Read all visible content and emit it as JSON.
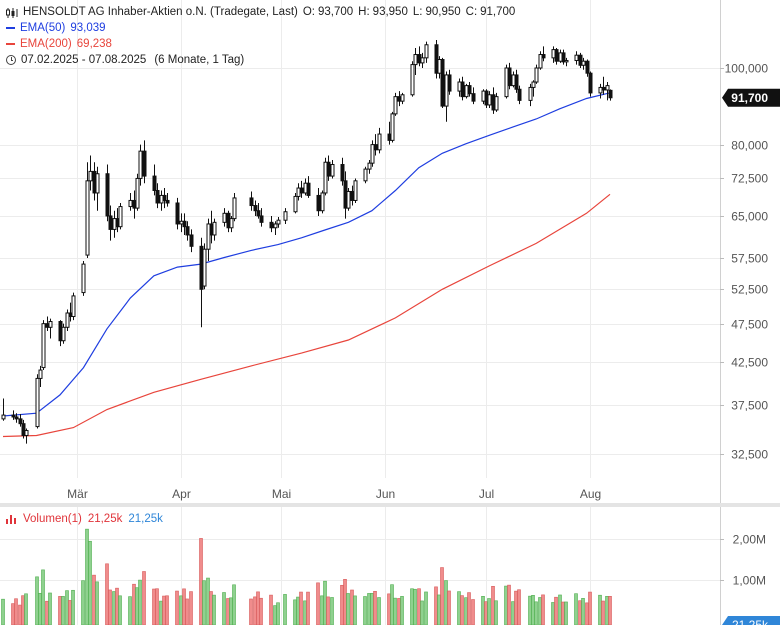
{
  "header": {
    "title": "HENSOLDT AG Inhaber-Aktien o.N. (Tradegate, Last)",
    "ohlc": {
      "open_label": "O:",
      "open": "93,700",
      "high_label": "H:",
      "high": "93,950",
      "low_label": "L:",
      "low": "90,950",
      "close_label": "C:",
      "close": "91,700"
    },
    "ema50": {
      "label": "EMA(50)",
      "value": "93,039",
      "color": "#1f3ee0"
    },
    "ema200": {
      "label": "EMA(200)",
      "value": "69,238",
      "color": "#e8453c"
    },
    "range": "07.02.2025 - 07.08.2025",
    "range_detail": "(6 Monate, 1 Tag)"
  },
  "price_badge": "91,700",
  "volume_legend": {
    "label": "Volumen(1)",
    "value1": "21,25k",
    "value2": "21,25k",
    "badge": "21,25k"
  },
  "chart_data": {
    "type": "candlestick",
    "y_scale": "log",
    "ylim": [
      30,
      115
    ],
    "y_ticks": [
      "100,000",
      "80,000",
      "72,500",
      "65,000",
      "57,500",
      "52,500",
      "47,500",
      "42,500",
      "37,500",
      "32,500"
    ],
    "y_tick_values": [
      100,
      80,
      72.5,
      65,
      57.5,
      52.5,
      47.5,
      42.5,
      37.5,
      32.5
    ],
    "x_range": [
      "2025-02-07",
      "2025-08-07"
    ],
    "x_ticks": [
      {
        "label": "Mär",
        "date": "2025-03-01"
      },
      {
        "label": "Apr",
        "date": "2025-04-01"
      },
      {
        "label": "Mai",
        "date": "2025-05-01"
      },
      {
        "label": "Jun",
        "date": "2025-06-01"
      },
      {
        "label": "Jul",
        "date": "2025-07-01"
      },
      {
        "label": "Aug",
        "date": "2025-08-01"
      }
    ],
    "candles": [
      {
        "d": "2025-02-07",
        "o": 36.0,
        "h": 38.2,
        "l": 35.8,
        "c": 36.4
      },
      {
        "d": "2025-02-10",
        "o": 36.4,
        "h": 36.9,
        "l": 35.9,
        "c": 36.2
      },
      {
        "d": "2025-02-11",
        "o": 36.2,
        "h": 36.6,
        "l": 35.6,
        "c": 36.0
      },
      {
        "d": "2025-02-12",
        "o": 36.0,
        "h": 36.5,
        "l": 35.2,
        "c": 35.5
      },
      {
        "d": "2025-02-13",
        "o": 35.5,
        "h": 35.9,
        "l": 34.0,
        "c": 34.3
      },
      {
        "d": "2025-02-14",
        "o": 34.3,
        "h": 35.0,
        "l": 33.5,
        "c": 34.8
      },
      {
        "d": "2025-02-17",
        "o": 35.2,
        "h": 41.0,
        "l": 35.0,
        "c": 40.5
      },
      {
        "d": "2025-02-18",
        "o": 40.5,
        "h": 42.0,
        "l": 39.5,
        "c": 41.5
      },
      {
        "d": "2025-02-19",
        "o": 41.8,
        "h": 48.0,
        "l": 41.5,
        "c": 47.5
      },
      {
        "d": "2025-02-20",
        "o": 47.5,
        "h": 48.5,
        "l": 46.5,
        "c": 47.0
      },
      {
        "d": "2025-02-21",
        "o": 47.0,
        "h": 48.2,
        "l": 45.5,
        "c": 47.8
      },
      {
        "d": "2025-02-24",
        "o": 47.8,
        "h": 48.0,
        "l": 44.5,
        "c": 45.2
      },
      {
        "d": "2025-02-25",
        "o": 45.2,
        "h": 47.5,
        "l": 44.8,
        "c": 47.0
      },
      {
        "d": "2025-02-26",
        "o": 47.0,
        "h": 49.5,
        "l": 46.5,
        "c": 49.0
      },
      {
        "d": "2025-02-27",
        "o": 49.0,
        "h": 50.5,
        "l": 47.8,
        "c": 48.5
      },
      {
        "d": "2025-02-28",
        "o": 48.5,
        "h": 52.0,
        "l": 48.0,
        "c": 51.5
      },
      {
        "d": "2025-03-03",
        "o": 52.0,
        "h": 57.0,
        "l": 51.5,
        "c": 56.5
      },
      {
        "d": "2025-03-04",
        "o": 58.0,
        "h": 76.0,
        "l": 57.5,
        "c": 72.0
      },
      {
        "d": "2025-03-05",
        "o": 72.0,
        "h": 77.5,
        "l": 70.0,
        "c": 74.0
      },
      {
        "d": "2025-03-06",
        "o": 74.0,
        "h": 76.0,
        "l": 68.0,
        "c": 69.5
      },
      {
        "d": "2025-03-07",
        "o": 69.5,
        "h": 75.0,
        "l": 66.0,
        "c": 73.5
      },
      {
        "d": "2025-03-10",
        "o": 73.5,
        "h": 75.5,
        "l": 64.0,
        "c": 65.0
      },
      {
        "d": "2025-03-11",
        "o": 65.0,
        "h": 67.0,
        "l": 60.5,
        "c": 62.5
      },
      {
        "d": "2025-03-12",
        "o": 62.5,
        "h": 66.0,
        "l": 61.0,
        "c": 64.5
      },
      {
        "d": "2025-03-13",
        "o": 64.5,
        "h": 66.5,
        "l": 62.0,
        "c": 63.0
      },
      {
        "d": "2025-03-14",
        "o": 63.0,
        "h": 67.5,
        "l": 62.5,
        "c": 66.8
      },
      {
        "d": "2025-03-17",
        "o": 66.8,
        "h": 69.5,
        "l": 66.0,
        "c": 68.0
      },
      {
        "d": "2025-03-18",
        "o": 68.0,
        "h": 70.0,
        "l": 64.5,
        "c": 66.5
      },
      {
        "d": "2025-03-19",
        "o": 66.5,
        "h": 73.5,
        "l": 66.0,
        "c": 72.5
      },
      {
        "d": "2025-03-20",
        "o": 72.5,
        "h": 80.0,
        "l": 71.0,
        "c": 78.5
      },
      {
        "d": "2025-03-21",
        "o": 78.5,
        "h": 81.0,
        "l": 71.5,
        "c": 73.0
      },
      {
        "d": "2025-03-24",
        "o": 73.0,
        "h": 75.5,
        "l": 69.0,
        "c": 70.0
      },
      {
        "d": "2025-03-25",
        "o": 70.0,
        "h": 71.5,
        "l": 66.5,
        "c": 67.5
      },
      {
        "d": "2025-03-26",
        "o": 67.5,
        "h": 70.0,
        "l": 66.0,
        "c": 69.0
      },
      {
        "d": "2025-03-27",
        "o": 69.0,
        "h": 70.5,
        "l": 66.5,
        "c": 68.0
      },
      {
        "d": "2025-03-28",
        "o": 68.0,
        "h": 69.5,
        "l": 66.8,
        "c": 67.5
      },
      {
        "d": "2025-03-31",
        "o": 67.5,
        "h": 68.5,
        "l": 62.5,
        "c": 63.5
      },
      {
        "d": "2025-04-01",
        "o": 63.5,
        "h": 65.5,
        "l": 62.0,
        "c": 64.0
      },
      {
        "d": "2025-04-02",
        "o": 64.0,
        "h": 65.5,
        "l": 61.5,
        "c": 63.0
      },
      {
        "d": "2025-04-03",
        "o": 63.0,
        "h": 64.0,
        "l": 60.5,
        "c": 61.5
      },
      {
        "d": "2025-04-04",
        "o": 61.5,
        "h": 62.5,
        "l": 58.5,
        "c": 59.5
      },
      {
        "d": "2025-04-07",
        "o": 59.5,
        "h": 61.0,
        "l": 47.0,
        "c": 52.5
      },
      {
        "d": "2025-04-08",
        "o": 53.0,
        "h": 60.0,
        "l": 52.5,
        "c": 59.0
      },
      {
        "d": "2025-04-09",
        "o": 59.0,
        "h": 64.5,
        "l": 57.0,
        "c": 63.5
      },
      {
        "d": "2025-04-10",
        "o": 63.5,
        "h": 66.0,
        "l": 60.0,
        "c": 61.5
      },
      {
        "d": "2025-04-11",
        "o": 61.5,
        "h": 64.5,
        "l": 60.5,
        "c": 63.8
      },
      {
        "d": "2025-04-14",
        "o": 63.8,
        "h": 66.5,
        "l": 63.0,
        "c": 65.5
      },
      {
        "d": "2025-04-15",
        "o": 65.5,
        "h": 66.0,
        "l": 62.0,
        "c": 62.8
      },
      {
        "d": "2025-04-16",
        "o": 62.8,
        "h": 65.0,
        "l": 62.0,
        "c": 64.5
      },
      {
        "d": "2025-04-17",
        "o": 64.5,
        "h": 69.5,
        "l": 64.0,
        "c": 68.5
      },
      {
        "d": "2025-04-22",
        "o": 68.5,
        "h": 69.8,
        "l": 66.0,
        "c": 67.0
      },
      {
        "d": "2025-04-23",
        "o": 67.0,
        "h": 68.0,
        "l": 65.0,
        "c": 66.0
      },
      {
        "d": "2025-04-24",
        "o": 66.0,
        "h": 67.5,
        "l": 64.5,
        "c": 65.0
      },
      {
        "d": "2025-04-25",
        "o": 65.0,
        "h": 66.5,
        "l": 63.0,
        "c": 63.8
      },
      {
        "d": "2025-04-28",
        "o": 63.8,
        "h": 65.0,
        "l": 62.0,
        "c": 62.8
      },
      {
        "d": "2025-04-29",
        "o": 62.8,
        "h": 64.0,
        "l": 61.5,
        "c": 63.5
      },
      {
        "d": "2025-04-30",
        "o": 63.5,
        "h": 64.8,
        "l": 62.8,
        "c": 64.2
      },
      {
        "d": "2025-05-02",
        "o": 64.2,
        "h": 66.5,
        "l": 63.5,
        "c": 65.8
      },
      {
        "d": "2025-05-05",
        "o": 65.8,
        "h": 69.5,
        "l": 65.5,
        "c": 68.8
      },
      {
        "d": "2025-05-06",
        "o": 68.8,
        "h": 71.5,
        "l": 68.0,
        "c": 70.5
      },
      {
        "d": "2025-05-07",
        "o": 70.5,
        "h": 72.0,
        "l": 68.5,
        "c": 69.5
      },
      {
        "d": "2025-05-08",
        "o": 69.5,
        "h": 72.5,
        "l": 69.0,
        "c": 71.5
      },
      {
        "d": "2025-05-09",
        "o": 71.5,
        "h": 73.0,
        "l": 68.5,
        "c": 69.0
      },
      {
        "d": "2025-05-12",
        "o": 69.0,
        "h": 70.5,
        "l": 65.0,
        "c": 66.0
      },
      {
        "d": "2025-05-13",
        "o": 66.0,
        "h": 70.0,
        "l": 65.5,
        "c": 69.5
      },
      {
        "d": "2025-05-14",
        "o": 69.5,
        "h": 77.0,
        "l": 69.0,
        "c": 76.0
      },
      {
        "d": "2025-05-15",
        "o": 76.0,
        "h": 77.5,
        "l": 72.0,
        "c": 73.0
      },
      {
        "d": "2025-05-16",
        "o": 73.0,
        "h": 76.5,
        "l": 72.5,
        "c": 75.5
      },
      {
        "d": "2025-05-19",
        "o": 75.5,
        "h": 77.0,
        "l": 71.0,
        "c": 72.0
      },
      {
        "d": "2025-05-20",
        "o": 72.0,
        "h": 74.0,
        "l": 64.5,
        "c": 66.5
      },
      {
        "d": "2025-05-21",
        "o": 66.5,
        "h": 70.5,
        "l": 66.0,
        "c": 69.8
      },
      {
        "d": "2025-05-22",
        "o": 69.8,
        "h": 71.0,
        "l": 67.0,
        "c": 68.0
      },
      {
        "d": "2025-05-23",
        "o": 68.0,
        "h": 72.5,
        "l": 67.5,
        "c": 72.0
      },
      {
        "d": "2025-05-26",
        "o": 72.0,
        "h": 75.0,
        "l": 71.5,
        "c": 74.5
      },
      {
        "d": "2025-05-27",
        "o": 74.5,
        "h": 76.5,
        "l": 73.5,
        "c": 75.8
      },
      {
        "d": "2025-05-28",
        "o": 75.8,
        "h": 81.0,
        "l": 75.0,
        "c": 80.0
      },
      {
        "d": "2025-05-29",
        "o": 80.0,
        "h": 82.5,
        "l": 77.5,
        "c": 78.8
      },
      {
        "d": "2025-05-30",
        "o": 78.8,
        "h": 84.0,
        "l": 78.0,
        "c": 82.5
      },
      {
        "d": "2025-06-02",
        "o": 82.5,
        "h": 85.5,
        "l": 80.0,
        "c": 81.0
      },
      {
        "d": "2025-06-03",
        "o": 81.0,
        "h": 88.0,
        "l": 80.5,
        "c": 87.5
      },
      {
        "d": "2025-06-04",
        "o": 87.5,
        "h": 93.0,
        "l": 87.0,
        "c": 92.0
      },
      {
        "d": "2025-06-05",
        "o": 92.0,
        "h": 93.5,
        "l": 89.5,
        "c": 90.8
      },
      {
        "d": "2025-06-06",
        "o": 90.8,
        "h": 93.0,
        "l": 90.0,
        "c": 92.5
      },
      {
        "d": "2025-06-09",
        "o": 92.5,
        "h": 102.0,
        "l": 92.0,
        "c": 101.0
      },
      {
        "d": "2025-06-10",
        "o": 101.0,
        "h": 106.0,
        "l": 98.0,
        "c": 104.0
      },
      {
        "d": "2025-06-11",
        "o": 104.0,
        "h": 106.5,
        "l": 100.5,
        "c": 101.5
      },
      {
        "d": "2025-06-12",
        "o": 101.5,
        "h": 104.5,
        "l": 100.0,
        "c": 103.0
      },
      {
        "d": "2025-06-13",
        "o": 103.0,
        "h": 108.0,
        "l": 101.5,
        "c": 107.0
      },
      {
        "d": "2025-06-16",
        "o": 107.0,
        "h": 108.5,
        "l": 97.0,
        "c": 98.5
      },
      {
        "d": "2025-06-17",
        "o": 98.5,
        "h": 103.5,
        "l": 97.0,
        "c": 102.5
      },
      {
        "d": "2025-06-18",
        "o": 102.5,
        "h": 103.0,
        "l": 89.0,
        "c": 89.5
      },
      {
        "d": "2025-06-19",
        "o": 89.5,
        "h": 99.0,
        "l": 85.5,
        "c": 98.0
      },
      {
        "d": "2025-06-20",
        "o": 98.0,
        "h": 99.5,
        "l": 92.5,
        "c": 93.5
      },
      {
        "d": "2025-06-23",
        "o": 93.5,
        "h": 97.0,
        "l": 92.0,
        "c": 96.0
      },
      {
        "d": "2025-06-24",
        "o": 96.0,
        "h": 97.5,
        "l": 91.0,
        "c": 92.0
      },
      {
        "d": "2025-06-25",
        "o": 92.0,
        "h": 95.5,
        "l": 91.5,
        "c": 95.0
      },
      {
        "d": "2025-06-26",
        "o": 95.0,
        "h": 96.0,
        "l": 92.0,
        "c": 92.8
      },
      {
        "d": "2025-06-27",
        "o": 92.8,
        "h": 94.5,
        "l": 90.0,
        "c": 90.8
      },
      {
        "d": "2025-06-30",
        "o": 90.8,
        "h": 94.0,
        "l": 90.0,
        "c": 93.5
      },
      {
        "d": "2025-07-01",
        "o": 93.5,
        "h": 94.0,
        "l": 89.0,
        "c": 89.8
      },
      {
        "d": "2025-07-02",
        "o": 89.8,
        "h": 93.5,
        "l": 89.0,
        "c": 92.5
      },
      {
        "d": "2025-07-03",
        "o": 92.5,
        "h": 94.5,
        "l": 87.5,
        "c": 88.5
      },
      {
        "d": "2025-07-04",
        "o": 88.5,
        "h": 93.0,
        "l": 88.0,
        "c": 92.0
      },
      {
        "d": "2025-07-07",
        "o": 92.0,
        "h": 101.0,
        "l": 91.5,
        "c": 100.0
      },
      {
        "d": "2025-07-08",
        "o": 100.0,
        "h": 101.5,
        "l": 94.0,
        "c": 95.0
      },
      {
        "d": "2025-07-09",
        "o": 95.0,
        "h": 99.0,
        "l": 94.5,
        "c": 98.0
      },
      {
        "d": "2025-07-10",
        "o": 98.0,
        "h": 99.5,
        "l": 93.0,
        "c": 94.0
      },
      {
        "d": "2025-07-11",
        "o": 94.0,
        "h": 95.0,
        "l": 90.0,
        "c": 91.0
      },
      {
        "d": "2025-07-14",
        "o": 91.0,
        "h": 95.5,
        "l": 89.5,
        "c": 94.5
      },
      {
        "d": "2025-07-15",
        "o": 94.5,
        "h": 96.5,
        "l": 92.0,
        "c": 96.0
      },
      {
        "d": "2025-07-16",
        "o": 96.0,
        "h": 101.0,
        "l": 95.5,
        "c": 100.0
      },
      {
        "d": "2025-07-17",
        "o": 100.0,
        "h": 105.0,
        "l": 99.5,
        "c": 104.0
      },
      {
        "d": "2025-07-18",
        "o": 104.0,
        "h": 106.5,
        "l": 102.0,
        "c": 103.0
      },
      {
        "d": "2025-07-21",
        "o": 103.0,
        "h": 106.5,
        "l": 101.5,
        "c": 105.5
      },
      {
        "d": "2025-07-22",
        "o": 105.5,
        "h": 106.0,
        "l": 101.0,
        "c": 102.0
      },
      {
        "d": "2025-07-23",
        "o": 102.0,
        "h": 105.5,
        "l": 101.5,
        "c": 104.5
      },
      {
        "d": "2025-07-24",
        "o": 104.5,
        "h": 105.5,
        "l": 101.0,
        "c": 101.8
      },
      {
        "d": "2025-07-25",
        "o": 101.8,
        "h": 103.0,
        "l": 100.5,
        "c": 102.2
      },
      {
        "d": "2025-07-28",
        "o": 102.2,
        "h": 105.0,
        "l": 101.0,
        "c": 103.8
      },
      {
        "d": "2025-07-29",
        "o": 103.8,
        "h": 104.5,
        "l": 100.0,
        "c": 100.8
      },
      {
        "d": "2025-07-30",
        "o": 100.8,
        "h": 103.0,
        "l": 99.5,
        "c": 102.0
      },
      {
        "d": "2025-07-31",
        "o": 102.0,
        "h": 102.5,
        "l": 97.5,
        "c": 98.5
      },
      {
        "d": "2025-08-01",
        "o": 98.5,
        "h": 99.0,
        "l": 92.0,
        "c": 93.0
      },
      {
        "d": "2025-08-04",
        "o": 93.0,
        "h": 95.5,
        "l": 91.5,
        "c": 94.5
      },
      {
        "d": "2025-08-05",
        "o": 94.5,
        "h": 97.5,
        "l": 92.5,
        "c": 93.8
      },
      {
        "d": "2025-08-06",
        "o": 93.8,
        "h": 96.0,
        "l": 91.0,
        "c": 95.0
      },
      {
        "d": "2025-08-07",
        "o": 93.7,
        "h": 93.95,
        "l": 90.95,
        "c": 91.7
      }
    ],
    "ema50": {
      "name": "EMA(50)",
      "color": "#1f3ee0",
      "points": [
        [
          "2025-02-07",
          36.3
        ],
        [
          "2025-02-17",
          36.6
        ],
        [
          "2025-02-24",
          38.6
        ],
        [
          "2025-03-03",
          41.8
        ],
        [
          "2025-03-10",
          46.8
        ],
        [
          "2025-03-17",
          51.2
        ],
        [
          "2025-03-24",
          54.6
        ],
        [
          "2025-03-31",
          56.0
        ],
        [
          "2025-04-07",
          56.5
        ],
        [
          "2025-04-14",
          57.6
        ],
        [
          "2025-04-22",
          58.8
        ],
        [
          "2025-04-30",
          59.8
        ],
        [
          "2025-05-07",
          61.0
        ],
        [
          "2025-05-14",
          62.4
        ],
        [
          "2025-05-21",
          63.8
        ],
        [
          "2025-05-28",
          66.0
        ],
        [
          "2025-06-04",
          70.0
        ],
        [
          "2025-06-11",
          74.8
        ],
        [
          "2025-06-18",
          78.0
        ],
        [
          "2025-06-25",
          80.2
        ],
        [
          "2025-07-02",
          82.2
        ],
        [
          "2025-07-09",
          84.2
        ],
        [
          "2025-07-16",
          86.2
        ],
        [
          "2025-07-23",
          88.8
        ],
        [
          "2025-07-31",
          91.5
        ],
        [
          "2025-08-07",
          93.039
        ]
      ]
    },
    "ema200": {
      "name": "EMA(200)",
      "color": "#e8453c",
      "points": [
        [
          "2025-02-07",
          34.2
        ],
        [
          "2025-02-17",
          34.3
        ],
        [
          "2025-02-28",
          35.1
        ],
        [
          "2025-03-10",
          37.0
        ],
        [
          "2025-03-24",
          38.9
        ],
        [
          "2025-04-07",
          40.4
        ],
        [
          "2025-04-22",
          42.0
        ],
        [
          "2025-05-07",
          43.6
        ],
        [
          "2025-05-21",
          45.3
        ],
        [
          "2025-06-04",
          48.3
        ],
        [
          "2025-06-18",
          52.5
        ],
        [
          "2025-07-02",
          56.2
        ],
        [
          "2025-07-16",
          60.0
        ],
        [
          "2025-07-31",
          65.5
        ],
        [
          "2025-08-07",
          69.238
        ]
      ]
    },
    "volume": {
      "y_ticks": [
        "2,00M",
        "1,00M"
      ],
      "y_tick_values": [
        2000000,
        1000000
      ],
      "ylim": [
        0,
        2600000
      ]
    }
  }
}
